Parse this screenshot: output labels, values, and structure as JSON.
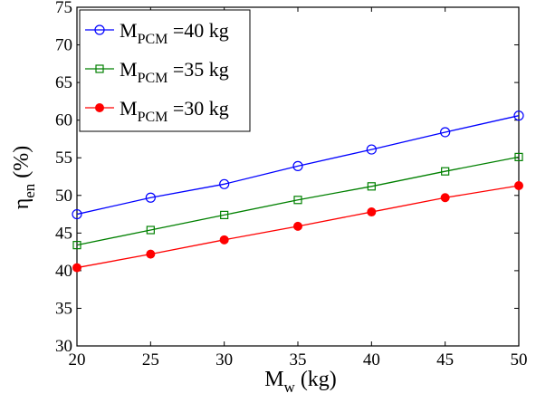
{
  "chart_data": {
    "type": "line",
    "x": [
      20,
      25,
      30,
      35,
      40,
      45,
      50
    ],
    "xlim": [
      20,
      50
    ],
    "ylim": [
      30,
      75
    ],
    "xticks": [
      20,
      25,
      30,
      35,
      40,
      45,
      50
    ],
    "yticks": [
      30,
      35,
      40,
      45,
      50,
      55,
      60,
      65,
      70,
      75
    ],
    "xlabel": {
      "main": "M",
      "sub": "w",
      "tail": " (kg)"
    },
    "ylabel": {
      "main": "η",
      "sub": "en",
      "tail": " (%)"
    },
    "grid": false,
    "legend_position": "top-left",
    "series": [
      {
        "name": "M PCM =40 kg",
        "label_main": "M",
        "label_sub": "PCM",
        "label_tail": " =40 kg",
        "color": "#0000ff",
        "marker": "circle-open",
        "values": [
          47.5,
          49.7,
          51.5,
          53.9,
          56.1,
          58.4,
          60.6
        ]
      },
      {
        "name": "M PCM =35 kg",
        "label_main": "M",
        "label_sub": "PCM",
        "label_tail": " =35 kg",
        "color": "#008000",
        "marker": "square-open",
        "values": [
          43.4,
          45.4,
          47.4,
          49.4,
          51.2,
          53.2,
          55.1
        ]
      },
      {
        "name": "M PCM =30 kg",
        "label_main": "M",
        "label_sub": "PCM",
        "label_tail": " =30 kg",
        "color": "#ff0000",
        "marker": "circle-filled",
        "values": [
          40.4,
          42.2,
          44.1,
          45.9,
          47.8,
          49.7,
          51.3
        ]
      }
    ]
  }
}
